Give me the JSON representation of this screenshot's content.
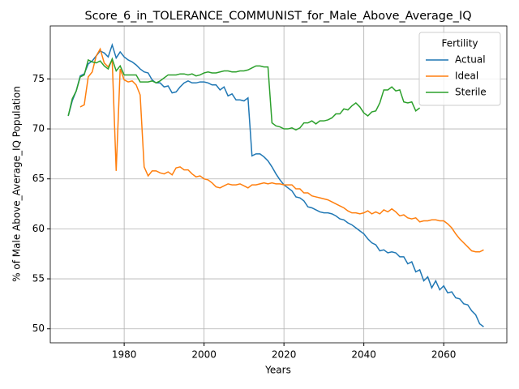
{
  "chart_data": {
    "type": "line",
    "title": "Score_6_in_TOLERANCE_COMMUNIST_for_Male_Above_Average_IQ",
    "x_label": "Years",
    "y_label": "% of Male Above_Average_IQ Population",
    "legend_title": "Fertility",
    "legend_position": "upper right",
    "grid": true,
    "xlim": [
      1961.5,
      2075.8
    ],
    "ylim": [
      48.6,
      80.3
    ],
    "xticks": [
      1980,
      2000,
      2020,
      2040,
      2060
    ],
    "yticks": [
      50,
      55,
      60,
      65,
      70,
      75
    ],
    "x": [
      1966,
      1967,
      1968,
      1969,
      1970,
      1971,
      1972,
      1973,
      1974,
      1975,
      1976,
      1977,
      1978,
      1979,
      1980,
      1981,
      1982,
      1983,
      1984,
      1985,
      1986,
      1987,
      1988,
      1989,
      1990,
      1991,
      1992,
      1993,
      1994,
      1995,
      1996,
      1997,
      1998,
      1999,
      2000,
      2001,
      2002,
      2003,
      2004,
      2005,
      2006,
      2007,
      2008,
      2009,
      2010,
      2011,
      2012,
      2013,
      2014,
      2015,
      2016,
      2017,
      2018,
      2019,
      2020,
      2021,
      2022,
      2023,
      2024,
      2025,
      2026,
      2027,
      2028,
      2029,
      2030,
      2031,
      2032,
      2033,
      2034,
      2035,
      2036,
      2037,
      2038,
      2039,
      2040,
      2041,
      2042,
      2043,
      2044,
      2045,
      2046,
      2047,
      2048,
      2049,
      2050,
      2051,
      2052,
      2053,
      2054,
      2055,
      2056,
      2057,
      2058,
      2059,
      2060,
      2061,
      2062,
      2063,
      2064,
      2065,
      2066,
      2067,
      2068,
      2069,
      2070
    ],
    "series": [
      {
        "name": "Actual",
        "color": "#1f77b4",
        "values": [
          71.3,
          72.8,
          73.8,
          75.3,
          75.5,
          76.5,
          76.8,
          77.3,
          77.8,
          77.6,
          77.2,
          78.4,
          77.1,
          77.7,
          77.2,
          76.9,
          76.7,
          76.4,
          76.0,
          75.7,
          75.6,
          74.9,
          74.6,
          74.6,
          74.2,
          74.3,
          73.6,
          73.7,
          74.2,
          74.6,
          74.8,
          74.6,
          74.6,
          74.7,
          74.7,
          74.6,
          74.4,
          74.4,
          73.9,
          74.2,
          73.3,
          73.5,
          72.9,
          72.9,
          72.8,
          73.1,
          67.3,
          67.5,
          67.5,
          67.2,
          66.8,
          66.2,
          65.5,
          64.9,
          64.4,
          64.1,
          63.8,
          63.2,
          63.1,
          62.8,
          62.2,
          62.1,
          61.9,
          61.7,
          61.6,
          61.6,
          61.5,
          61.3,
          61.0,
          60.9,
          60.6,
          60.4,
          60.1,
          59.8,
          59.5,
          59.0,
          58.6,
          58.4,
          57.8,
          57.9,
          57.6,
          57.7,
          57.6,
          57.2,
          57.2,
          56.5,
          56.7,
          55.7,
          55.9,
          54.8,
          55.2,
          54.1,
          54.8,
          53.9,
          54.3,
          53.6,
          53.7,
          53.1,
          53.0,
          52.5,
          52.4,
          51.8,
          51.4,
          50.5,
          50.2
        ]
      },
      {
        "name": "Ideal",
        "color": "#ff7f0e",
        "values": [
          null,
          null,
          null,
          72.2,
          72.4,
          75.2,
          75.7,
          77.3,
          78.0,
          76.6,
          76.2,
          76.9,
          65.8,
          76.0,
          74.9,
          74.7,
          74.8,
          74.4,
          73.4,
          66.2,
          65.3,
          65.8,
          65.8,
          65.6,
          65.5,
          65.7,
          65.4,
          66.1,
          66.2,
          65.9,
          65.9,
          65.5,
          65.2,
          65.3,
          65.0,
          64.9,
          64.6,
          64.2,
          64.1,
          64.3,
          64.5,
          64.4,
          64.4,
          64.5,
          64.3,
          64.1,
          64.4,
          64.4,
          64.5,
          64.6,
          64.5,
          64.6,
          64.5,
          64.5,
          64.4,
          64.4,
          64.4,
          64.0,
          64.0,
          63.6,
          63.6,
          63.3,
          63.2,
          63.1,
          63.0,
          62.9,
          62.7,
          62.5,
          62.3,
          62.1,
          61.8,
          61.6,
          61.6,
          61.5,
          61.6,
          61.8,
          61.5,
          61.7,
          61.5,
          61.9,
          61.7,
          62.0,
          61.7,
          61.3,
          61.4,
          61.1,
          61.0,
          61.1,
          60.7,
          60.8,
          60.8,
          60.9,
          60.9,
          60.8,
          60.8,
          60.5,
          60.1,
          59.5,
          59.0,
          58.6,
          58.2,
          57.8,
          57.7,
          57.7,
          57.9
        ]
      },
      {
        "name": "Sterile",
        "color": "#2ca02c",
        "values": [
          71.3,
          73.0,
          73.8,
          75.2,
          75.4,
          76.9,
          76.7,
          76.6,
          76.8,
          76.3,
          76.0,
          77.0,
          75.8,
          76.3,
          75.4,
          75.4,
          75.4,
          75.4,
          74.7,
          74.7,
          74.7,
          74.8,
          74.6,
          74.8,
          75.1,
          75.4,
          75.4,
          75.4,
          75.5,
          75.5,
          75.4,
          75.5,
          75.3,
          75.4,
          75.6,
          75.7,
          75.6,
          75.6,
          75.7,
          75.8,
          75.8,
          75.7,
          75.7,
          75.8,
          75.8,
          75.9,
          76.1,
          76.3,
          76.3,
          76.2,
          76.2,
          70.6,
          70.3,
          70.2,
          70.0,
          70.0,
          70.1,
          69.9,
          70.1,
          70.6,
          70.6,
          70.8,
          70.5,
          70.8,
          70.8,
          70.9,
          71.1,
          71.5,
          71.5,
          72.0,
          71.9,
          72.3,
          72.6,
          72.2,
          71.6,
          71.3,
          71.7,
          71.8,
          72.6,
          73.9,
          73.9,
          74.2,
          73.8,
          73.9,
          72.7,
          72.6,
          72.7,
          71.8,
          72.1,
          null,
          null,
          null,
          null,
          null,
          null,
          null,
          null,
          null,
          null,
          null,
          null,
          null,
          null,
          null,
          null
        ]
      }
    ]
  }
}
